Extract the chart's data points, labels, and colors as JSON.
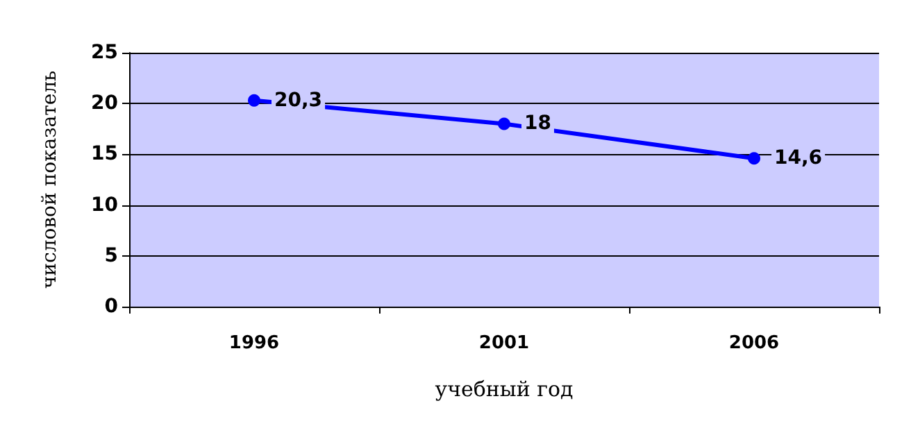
{
  "chart_data": {
    "type": "line",
    "categories": [
      "1996",
      "2001",
      "2006"
    ],
    "series": [
      {
        "color": "#0000ff",
        "values": [
          20.3,
          18,
          14.6
        ],
        "value_labels": [
          "20,3",
          "18",
          "14,6"
        ]
      }
    ],
    "xlabel": "учебный год",
    "ylabel": "числовой показатель",
    "ylim": [
      0,
      25
    ],
    "yticks": [
      0,
      5,
      10,
      15,
      20,
      25
    ],
    "grid": "y",
    "marker": "circle",
    "line_style": "solid"
  }
}
